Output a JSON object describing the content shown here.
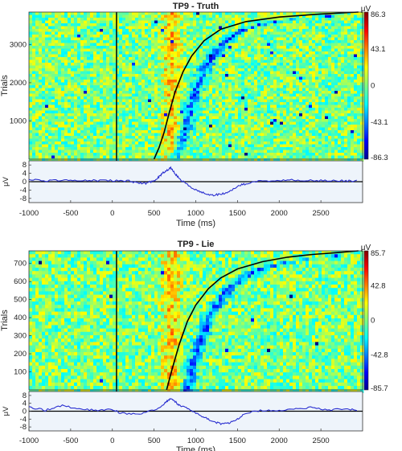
{
  "chart_data": [
    {
      "type": "heatmap",
      "title": "TP9 - Truth",
      "ylabel": "Trials",
      "xlabel": "Time (ms)",
      "xlim": [
        -1000,
        3000
      ],
      "xticks": [
        -1000,
        -500,
        0,
        500,
        1000,
        1500,
        2000,
        2500
      ],
      "trials_lim": [
        0,
        3850
      ],
      "trial_ticks": [
        1000,
        2000,
        3000
      ],
      "colorbar": {
        "unit": "μV",
        "ticks": [
          86.3,
          43.1,
          0,
          -43.1,
          -86.3
        ],
        "range": [
          -86.3,
          86.3
        ]
      },
      "stimulus_onset_ms": 50,
      "response_curve": {
        "x": [
          500,
          560,
          620,
          680,
          750,
          850,
          950,
          1100,
          1300,
          1600,
          2000,
          2500,
          2950
        ],
        "trials": [
          0,
          300,
          700,
          1200,
          1750,
          2300,
          2700,
          3100,
          3400,
          3600,
          3720,
          3800,
          3850
        ]
      },
      "erp": {
        "ylabel": "μV",
        "yticks": [
          8,
          4,
          0,
          -4,
          -8
        ],
        "ylim": [
          -10,
          10
        ],
        "series": [
          {
            "x": [
              -1000,
              -800,
              -600,
              -400,
              -200,
              0,
              200,
              300,
              400,
              500,
              550,
              600,
              650,
              700,
              750,
              800,
              900,
              1000,
              1100,
              1200,
              1300,
              1400,
              1500,
              1600,
              1800,
              2000,
              2200,
              2400,
              2600,
              2800,
              2950
            ],
            "values": [
              1,
              0.5,
              0.8,
              0.4,
              0.6,
              0.5,
              0.3,
              -0.5,
              -0.8,
              0.5,
              2,
              4,
              5.5,
              6.5,
              4,
              1.5,
              -1.5,
              -4,
              -5.5,
              -6.5,
              -6,
              -5,
              -2,
              -1,
              0.5,
              0.5,
              0.8,
              0.6,
              0.5,
              0.4,
              0.5
            ]
          }
        ]
      }
    },
    {
      "type": "heatmap",
      "title": "TP9 - Lie",
      "ylabel": "Trials",
      "xlabel": "Time (ms)",
      "xlim": [
        -1000,
        3000
      ],
      "xticks": [
        -1000,
        -500,
        0,
        500,
        1000,
        1500,
        2000,
        2500
      ],
      "trials_lim": [
        0,
        770
      ],
      "trial_ticks": [
        100,
        200,
        300,
        400,
        500,
        600,
        700
      ],
      "colorbar": {
        "unit": "μV",
        "ticks": [
          85.7,
          42.8,
          0,
          -42.8,
          -85.7
        ],
        "range": [
          -85.7,
          85.7
        ]
      },
      "stimulus_onset_ms": 50,
      "response_curve": {
        "x": [
          650,
          720,
          800,
          900,
          1000,
          1150,
          1300,
          1500,
          1800,
          2100,
          2400,
          2700,
          2950
        ],
        "trials": [
          0,
          120,
          250,
          380,
          470,
          560,
          620,
          670,
          710,
          735,
          750,
          760,
          770
        ]
      },
      "erp": {
        "ylabel": "μV",
        "yticks": [
          8,
          4,
          0,
          -4,
          -8
        ],
        "ylim": [
          -10,
          10
        ],
        "series": [
          {
            "x": [
              -1000,
              -800,
              -600,
              -400,
              -200,
              0,
              100,
              300,
              500,
              600,
              650,
              700,
              750,
              800,
              900,
              1000,
              1100,
              1200,
              1300,
              1400,
              1500,
              1600,
              1800,
              2000,
              2200,
              2400,
              2600,
              2800,
              2950
            ],
            "values": [
              2,
              0.5,
              3,
              1,
              0.5,
              1,
              -1,
              -1.5,
              0.5,
              3,
              5,
              6.5,
              5,
              3,
              1.5,
              -1,
              -3,
              -5,
              -6.5,
              -6,
              -4,
              -1,
              0.5,
              0.5,
              1,
              2,
              0.5,
              1.5,
              0
            ]
          }
        ]
      }
    }
  ]
}
